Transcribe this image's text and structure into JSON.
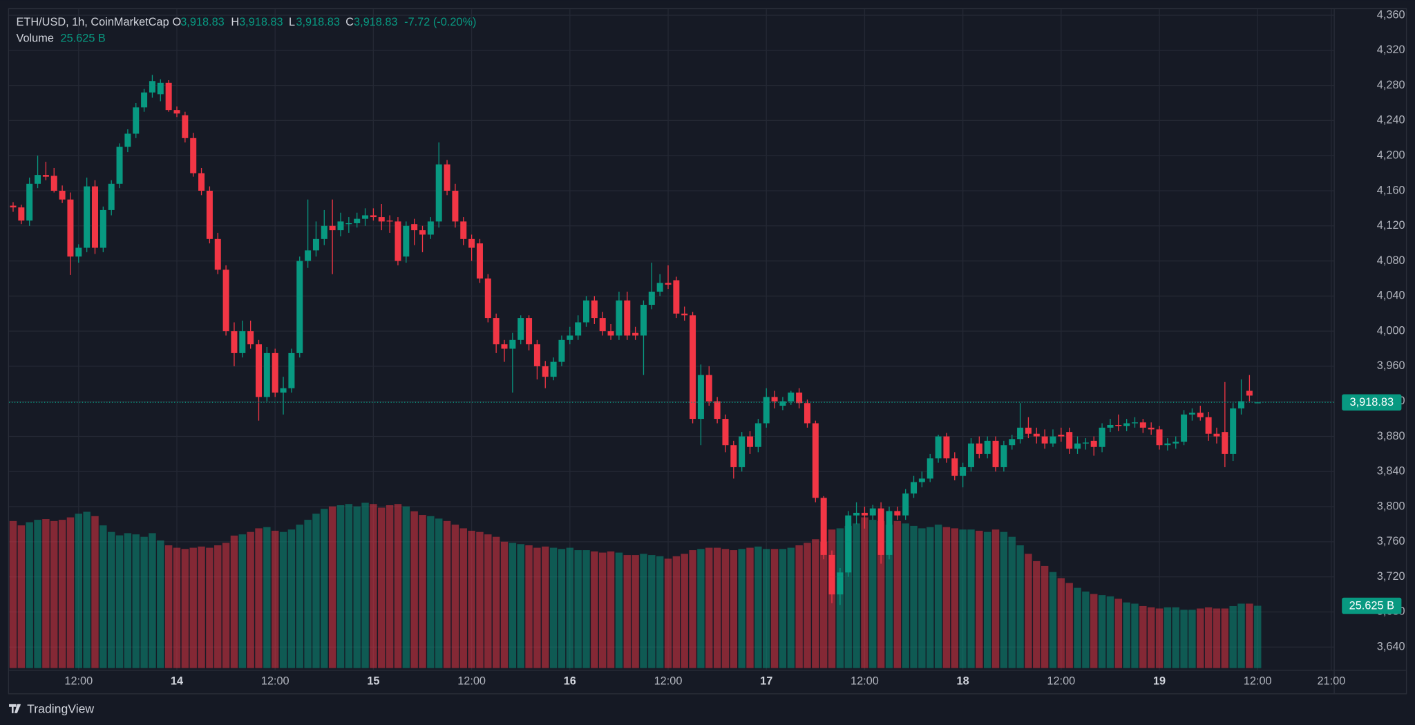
{
  "brand": "TradingView",
  "chart_data": {
    "type": "candlestick",
    "legend": {
      "symbol": "ETH/USD, 1h, CoinMarketCap",
      "ohlc_keys": [
        "O",
        "H",
        "L",
        "C"
      ],
      "ohlc_texts": [
        "3,918.83",
        "3,918.83",
        "3,918.83",
        "3,918.83"
      ],
      "change": "-7.72 (-0.20%)",
      "volume_title": "Volume",
      "volume_text": "25.625 B"
    },
    "last_price_label": "3,918.83",
    "last_volume_label": "25.625 B",
    "up_color": "#089981",
    "down_color": "#f23645",
    "grid": true,
    "xlim": [
      3.5,
      165.3
    ],
    "xticks": [
      {
        "value": 12,
        "label": "12:00"
      },
      {
        "value": 24,
        "label": "14"
      },
      {
        "value": 36,
        "label": "12:00"
      },
      {
        "value": 48,
        "label": "15"
      },
      {
        "value": 60,
        "label": "12:00"
      },
      {
        "value": 72,
        "label": "16"
      },
      {
        "value": 84,
        "label": "12:00"
      },
      {
        "value": 96,
        "label": "17"
      },
      {
        "value": 108,
        "label": "12:00"
      },
      {
        "value": 120,
        "label": "18"
      },
      {
        "value": 132,
        "label": "12:00"
      },
      {
        "value": 144,
        "label": "19"
      },
      {
        "value": 156,
        "label": "12:00"
      },
      {
        "value": 165,
        "label": "21:00"
      }
    ],
    "ylim": [
      3614,
      4367
    ],
    "yticks": [
      {
        "value": 3640,
        "label": "3,640"
      },
      {
        "value": 3680,
        "label": "3,680"
      },
      {
        "value": 3720,
        "label": "3,720"
      },
      {
        "value": 3760,
        "label": "3,760"
      },
      {
        "value": 3800,
        "label": "3,800"
      },
      {
        "value": 3840,
        "label": "3,840"
      },
      {
        "value": 3880,
        "label": "3,880"
      },
      {
        "value": 3920,
        "label": "3,920"
      },
      {
        "value": 3960,
        "label": "3,960"
      },
      {
        "value": 4000,
        "label": "4,000"
      },
      {
        "value": 4040,
        "label": "4,040"
      },
      {
        "value": 4080,
        "label": "4,080"
      },
      {
        "value": 4120,
        "label": "4,120"
      },
      {
        "value": 4160,
        "label": "4,160"
      },
      {
        "value": 4200,
        "label": "4,200"
      },
      {
        "value": 4240,
        "label": "4,240"
      },
      {
        "value": 4280,
        "label": "4,280"
      },
      {
        "value": 4320,
        "label": "4,320"
      },
      {
        "value": 4360,
        "label": "4,360"
      }
    ],
    "x": [
      4,
      5,
      6,
      7,
      8,
      9,
      10,
      11,
      12,
      13,
      14,
      15,
      16,
      17,
      18,
      19,
      20,
      21,
      22,
      23,
      24,
      25,
      26,
      27,
      28,
      29,
      30,
      31,
      32,
      33,
      34,
      35,
      36,
      37,
      38,
      39,
      40,
      41,
      42,
      43,
      44,
      45,
      46,
      47,
      48,
      49,
      50,
      51,
      52,
      53,
      54,
      55,
      56,
      57,
      58,
      59,
      60,
      61,
      62,
      63,
      64,
      65,
      66,
      67,
      68,
      69,
      70,
      71,
      72,
      73,
      74,
      75,
      76,
      77,
      78,
      79,
      80,
      81,
      82,
      83,
      84,
      85,
      86,
      87,
      88,
      89,
      90,
      91,
      92,
      93,
      94,
      95,
      96,
      97,
      98,
      99,
      100,
      101,
      102,
      103,
      104,
      105,
      106,
      107,
      108,
      109,
      110,
      111,
      112,
      113,
      114,
      115,
      116,
      117,
      118,
      119,
      120,
      121,
      122,
      123,
      124,
      125,
      126,
      127,
      128,
      129,
      130,
      131,
      132,
      133,
      134,
      135,
      136,
      137,
      138,
      139,
      140,
      141,
      142,
      143,
      144,
      145,
      146,
      147,
      148,
      149,
      150,
      151,
      152,
      153,
      154,
      155,
      156
    ],
    "ohlc": [
      [
        4143,
        4147,
        4136,
        4141
      ],
      [
        4141,
        4144,
        4122,
        4126
      ],
      [
        4126,
        4175,
        4120,
        4168
      ],
      [
        4168,
        4200,
        4163,
        4178
      ],
      [
        4178,
        4193,
        4172,
        4176
      ],
      [
        4177,
        4186,
        4158,
        4160
      ],
      [
        4160,
        4166,
        4146,
        4150
      ],
      [
        4150,
        4158,
        4064,
        4085
      ],
      [
        4085,
        4099,
        4078,
        4095
      ],
      [
        4095,
        4175,
        4090,
        4165
      ],
      [
        4165,
        4172,
        4088,
        4095
      ],
      [
        4095,
        4142,
        4090,
        4138
      ],
      [
        4138,
        4172,
        4132,
        4168
      ],
      [
        4168,
        4214,
        4163,
        4210
      ],
      [
        4210,
        4230,
        4204,
        4225
      ],
      [
        4225,
        4260,
        4220,
        4255
      ],
      [
        4255,
        4276,
        4250,
        4272
      ],
      [
        4272,
        4292,
        4266,
        4285
      ],
      [
        4270,
        4287,
        4262,
        4283
      ],
      [
        4283,
        4286,
        4250,
        4252
      ],
      [
        4252,
        4256,
        4244,
        4248
      ],
      [
        4246,
        4250,
        4215,
        4220
      ],
      [
        4220,
        4226,
        4176,
        4180
      ],
      [
        4180,
        4186,
        4155,
        4160
      ],
      [
        4160,
        4165,
        4100,
        4105
      ],
      [
        4105,
        4112,
        4065,
        4070
      ],
      [
        4070,
        4075,
        3995,
        4000
      ],
      [
        4000,
        4010,
        3960,
        3975
      ],
      [
        3975,
        4012,
        3970,
        4000
      ],
      [
        4000,
        4012,
        3980,
        3985
      ],
      [
        3985,
        3990,
        3898,
        3925
      ],
      [
        3925,
        3982,
        3920,
        3975
      ],
      [
        3975,
        3980,
        3925,
        3930
      ],
      [
        3930,
        3948,
        3905,
        3935
      ],
      [
        3935,
        3980,
        3930,
        3975
      ],
      [
        3975,
        4085,
        3970,
        4080
      ],
      [
        4080,
        4150,
        4072,
        4092
      ],
      [
        4092,
        4125,
        4085,
        4105
      ],
      [
        4105,
        4138,
        4098,
        4120
      ],
      [
        4120,
        4150,
        4065,
        4115
      ],
      [
        4115,
        4135,
        4108,
        4125
      ],
      [
        4122,
        4130,
        4112,
        4123
      ],
      [
        4123,
        4135,
        4118,
        4128
      ],
      [
        4128,
        4140,
        4120,
        4132
      ],
      [
        4132,
        4140,
        4126,
        4130
      ],
      [
        4130,
        4145,
        4115,
        4125
      ],
      [
        4126,
        4132,
        4112,
        4125
      ],
      [
        4125,
        4130,
        4075,
        4080
      ],
      [
        4085,
        4125,
        4078,
        4120
      ],
      [
        4122,
        4128,
        4098,
        4115
      ],
      [
        4115,
        4120,
        4090,
        4110
      ],
      [
        4110,
        4130,
        4105,
        4125
      ],
      [
        4125,
        4215,
        4118,
        4190
      ],
      [
        4190,
        4195,
        4155,
        4160
      ],
      [
        4160,
        4168,
        4118,
        4125
      ],
      [
        4125,
        4130,
        4098,
        4105
      ],
      [
        4105,
        4110,
        4080,
        4095
      ],
      [
        4100,
        4105,
        4055,
        4060
      ],
      [
        4060,
        4065,
        4010,
        4015
      ],
      [
        4015,
        4020,
        3975,
        3985
      ],
      [
        3985,
        3990,
        3965,
        3980
      ],
      [
        3980,
        3998,
        3930,
        3990
      ],
      [
        3990,
        4018,
        3985,
        4015
      ],
      [
        4015,
        4018,
        3978,
        3985
      ],
      [
        3985,
        3990,
        3945,
        3960
      ],
      [
        3960,
        3966,
        3935,
        3948
      ],
      [
        3948,
        3970,
        3944,
        3965
      ],
      [
        3965,
        3995,
        3960,
        3990
      ],
      [
        3990,
        4005,
        3985,
        3995
      ],
      [
        3995,
        4018,
        3990,
        4010
      ],
      [
        4010,
        4040,
        4005,
        4035
      ],
      [
        4035,
        4040,
        4008,
        4015
      ],
      [
        4015,
        4022,
        3995,
        4000
      ],
      [
        4000,
        4008,
        3990,
        3995
      ],
      [
        3995,
        4045,
        3990,
        4035
      ],
      [
        4035,
        4045,
        3990,
        3995
      ],
      [
        3998,
        4005,
        3990,
        3995
      ],
      [
        3995,
        4035,
        3950,
        4030
      ],
      [
        4030,
        4078,
        4025,
        4045
      ],
      [
        4045,
        4065,
        4040,
        4055
      ],
      [
        4055,
        4075,
        4048,
        4053
      ],
      [
        4058,
        4062,
        4015,
        4020
      ],
      [
        4020,
        4028,
        4012,
        4018
      ],
      [
        4018,
        4022,
        3895,
        3900
      ],
      [
        3900,
        3962,
        3870,
        3950
      ],
      [
        3950,
        3960,
        3915,
        3920
      ],
      [
        3920,
        3925,
        3895,
        3900
      ],
      [
        3900,
        3905,
        3862,
        3870
      ],
      [
        3870,
        3875,
        3832,
        3845
      ],
      [
        3845,
        3885,
        3840,
        3880
      ],
      [
        3880,
        3886,
        3860,
        3868
      ],
      [
        3868,
        3900,
        3862,
        3895
      ],
      [
        3895,
        3935,
        3890,
        3925
      ],
      [
        3925,
        3932,
        3912,
        3920
      ],
      [
        3915,
        3925,
        3910,
        3920
      ],
      [
        3920,
        3932,
        3916,
        3930
      ],
      [
        3930,
        3935,
        3912,
        3918
      ],
      [
        3918,
        3922,
        3890,
        3895
      ],
      [
        3895,
        3898,
        3805,
        3810
      ],
      [
        3810,
        3812,
        3740,
        3745
      ],
      [
        3745,
        3750,
        3690,
        3700
      ],
      [
        3700,
        3730,
        3688,
        3725
      ],
      [
        3725,
        3795,
        3720,
        3790
      ],
      [
        3790,
        3805,
        3780,
        3793
      ],
      [
        3793,
        3800,
        3775,
        3790
      ],
      [
        3790,
        3802,
        3785,
        3798
      ],
      [
        3798,
        3805,
        3735,
        3745
      ],
      [
        3745,
        3800,
        3740,
        3795
      ],
      [
        3795,
        3800,
        3785,
        3790
      ],
      [
        3790,
        3820,
        3785,
        3815
      ],
      [
        3815,
        3835,
        3810,
        3828
      ],
      [
        3828,
        3840,
        3822,
        3832
      ],
      [
        3832,
        3860,
        3828,
        3855
      ],
      [
        3855,
        3882,
        3850,
        3880
      ],
      [
        3880,
        3884,
        3850,
        3855
      ],
      [
        3855,
        3862,
        3830,
        3835
      ],
      [
        3835,
        3850,
        3822,
        3845
      ],
      [
        3845,
        3878,
        3840,
        3872
      ],
      [
        3872,
        3880,
        3855,
        3860
      ],
      [
        3860,
        3880,
        3855,
        3875
      ],
      [
        3875,
        3880,
        3840,
        3845
      ],
      [
        3845,
        3875,
        3840,
        3870
      ],
      [
        3870,
        3882,
        3865,
        3877
      ],
      [
        3877,
        3918,
        3872,
        3890
      ],
      [
        3890,
        3902,
        3878,
        3883
      ],
      [
        3883,
        3890,
        3872,
        3880
      ],
      [
        3880,
        3888,
        3866,
        3872
      ],
      [
        3872,
        3888,
        3868,
        3880
      ],
      [
        3882,
        3890,
        3874,
        3880
      ],
      [
        3885,
        3890,
        3860,
        3866
      ],
      [
        3866,
        3880,
        3860,
        3872
      ],
      [
        3872,
        3878,
        3865,
        3873
      ],
      [
        3875,
        3880,
        3858,
        3868
      ],
      [
        3868,
        3895,
        3862,
        3890
      ],
      [
        3890,
        3900,
        3885,
        3893
      ],
      [
        3893,
        3905,
        3886,
        3892
      ],
      [
        3892,
        3900,
        3886,
        3895
      ],
      [
        3895,
        3902,
        3890,
        3896
      ],
      [
        3896,
        3900,
        3884,
        3890
      ],
      [
        3890,
        3896,
        3882,
        3888
      ],
      [
        3888,
        3892,
        3865,
        3870
      ],
      [
        3870,
        3878,
        3864,
        3872
      ],
      [
        3872,
        3880,
        3866,
        3874
      ],
      [
        3874,
        3910,
        3870,
        3905
      ],
      [
        3905,
        3912,
        3898,
        3907
      ],
      [
        3907,
        3915,
        3898,
        3902
      ],
      [
        3902,
        3908,
        3875,
        3883
      ],
      [
        3883,
        3890,
        3872,
        3880
      ],
      [
        3885,
        3942,
        3845,
        3860
      ],
      [
        3860,
        3918,
        3852,
        3912
      ],
      [
        3912,
        3945,
        3905,
        3920
      ],
      [
        3932,
        3950,
        3920,
        3926.55
      ],
      [
        3918.83,
        3918.83,
        3918.83,
        3918.83
      ]
    ],
    "volume": [
      60.5,
      58.7,
      60.0,
      61.0,
      61.3,
      60.5,
      61.0,
      62.0,
      63.5,
      64.3,
      62.5,
      58.7,
      56.0,
      54.6,
      55.5,
      55.0,
      54.0,
      55.5,
      52.5,
      50.5,
      49.5,
      49.0,
      49.5,
      50.0,
      49.5,
      50.5,
      51.5,
      54.5,
      55.0,
      56.0,
      57.5,
      58.0,
      56.5,
      56.0,
      57.0,
      59.0,
      61.0,
      63.5,
      65.5,
      66.5,
      67.0,
      67.5,
      66.5,
      68.0,
      67.5,
      66.0,
      67.0,
      67.5,
      66.5,
      64.5,
      63.0,
      62.5,
      61.5,
      60.5,
      59.0,
      57.5,
      56.5,
      56.0,
      55.0,
      54.0,
      52.0,
      51.5,
      51.0,
      50.5,
      49.5,
      50.0,
      49.5,
      49.0,
      49.5,
      48.5,
      48.5,
      48.0,
      47.5,
      48.0,
      47.5,
      46.5,
      46.5,
      47.0,
      46.5,
      46.0,
      45.0,
      46.0,
      47.0,
      48.5,
      49.0,
      49.5,
      49.5,
      49.0,
      48.5,
      49.0,
      49.5,
      50.0,
      49.0,
      49.0,
      49.0,
      49.5,
      50.5,
      51.5,
      53.0,
      52.0,
      57.0,
      57.5,
      58.5,
      59.5,
      62.0,
      61.0,
      60.5,
      59.0,
      60.5,
      59.5,
      58.5,
      57.5,
      58.0,
      59.0,
      58.0,
      57.5,
      57.0,
      57.0,
      56.5,
      56.0,
      57.0,
      56.0,
      54.0,
      50.5,
      47.0,
      44.0,
      42.0,
      39.5,
      37.0,
      35.0,
      33.0,
      31.5,
      30.5,
      30.0,
      29.5,
      28.5,
      27.0,
      26.5,
      25.5,
      25.0,
      24.5,
      25.0,
      25.0,
      24.0,
      24.0,
      24.5,
      25.0,
      24.5,
      24.5,
      25.5,
      26.5,
      26.5,
      25.625
    ]
  }
}
